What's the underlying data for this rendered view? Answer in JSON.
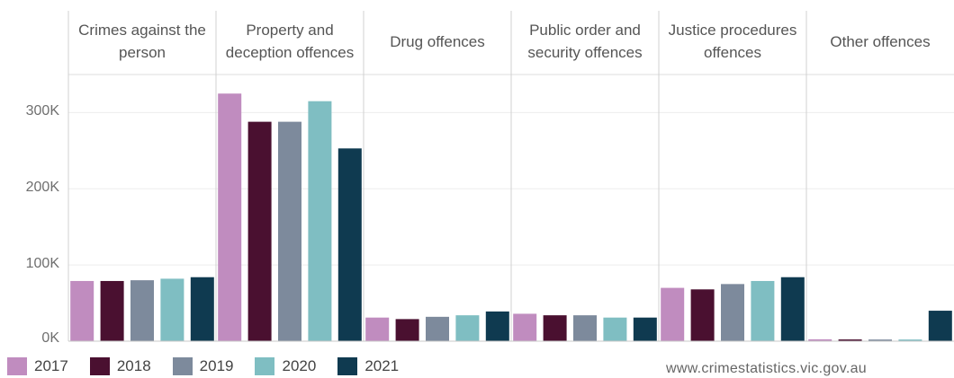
{
  "chart_data": {
    "type": "bar",
    "panels": [
      "Crimes against the person",
      "Property and deception offences",
      "Drug offences",
      "Public order and security offences",
      "Justice procedures offences",
      "Other offences"
    ],
    "series": [
      {
        "name": "2017",
        "color": "#c08cbf",
        "values": [
          79000,
          325000,
          31000,
          36000,
          70000,
          2500
        ]
      },
      {
        "name": "2018",
        "color": "#4a1030",
        "values": [
          79000,
          288000,
          29000,
          34000,
          68000,
          2300
        ]
      },
      {
        "name": "2019",
        "color": "#7d8a9c",
        "values": [
          80000,
          288000,
          32000,
          34000,
          75000,
          2200
        ]
      },
      {
        "name": "2020",
        "color": "#7fbec2",
        "values": [
          82000,
          315000,
          34000,
          31000,
          79000,
          2200
        ]
      },
      {
        "name": "2021",
        "color": "#0f3a50",
        "values": [
          84000,
          253000,
          39000,
          31000,
          84000,
          40000
        ]
      }
    ],
    "ytick_values": [
      0,
      100000,
      200000,
      300000
    ],
    "ytick_labels": [
      "0K",
      "100K",
      "200K",
      "300K"
    ],
    "ylim": [
      0,
      350000
    ],
    "grid": true,
    "legend": "bottom-left"
  },
  "source": "www.crimestatistics.vic.gov.au"
}
